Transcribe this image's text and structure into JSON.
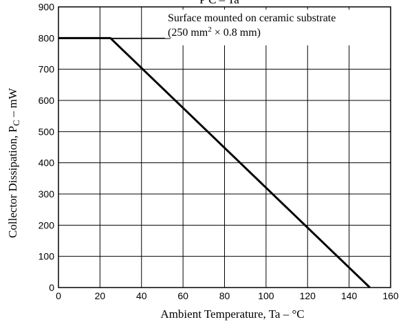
{
  "chart_data": {
    "type": "line",
    "top_label": "P C – Ta",
    "title": "",
    "xlabel": "Ambient Temperature, Ta  –   °C",
    "ylabel": "Collector Dissipation, P",
    "ylabel_subscript": "C",
    "ylabel_unit": "  –  mW",
    "xlim": [
      0,
      160
    ],
    "ylim": [
      0,
      900
    ],
    "x_ticks": [
      0,
      20,
      40,
      60,
      80,
      100,
      120,
      140,
      160
    ],
    "y_ticks": [
      0,
      100,
      200,
      300,
      400,
      500,
      600,
      700,
      800,
      900
    ],
    "grid": true,
    "annotation_line1": "Surface mounted on ceramic substrate",
    "annotation_line2_prefix": "(250 mm",
    "annotation_line2_sup": "2",
    "annotation_line2_suffix": " × 0.8 mm)",
    "series": [
      {
        "x": [
          0,
          25,
          150
        ],
        "y": [
          800,
          800,
          0
        ]
      }
    ]
  }
}
